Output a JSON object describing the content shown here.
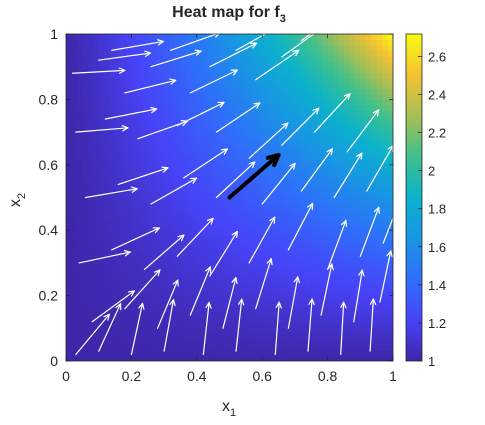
{
  "chart_data": {
    "type": "heatmap",
    "title": "Heat map for f",
    "title_subscript": "3",
    "xlabel": "x",
    "xlabel_subscript": "1",
    "ylabel": "x",
    "ylabel_subscript": "2",
    "xlim": [
      0,
      1
    ],
    "ylim": [
      0,
      1
    ],
    "xticks": [
      0,
      0.2,
      0.4,
      0.6,
      0.8,
      1
    ],
    "xtick_labels": [
      "0",
      "0.2",
      "0.4",
      "0.6",
      "0.8",
      "1"
    ],
    "yticks": [
      0,
      0.2,
      0.4,
      0.6,
      0.8,
      1
    ],
    "ytick_labels": [
      "0",
      "0.2",
      "0.4",
      "0.6",
      "0.8",
      "1"
    ],
    "colorbar": {
      "colormap": "parula",
      "limits": [
        1,
        2.718
      ],
      "ticks": [
        1,
        1.2,
        1.4,
        1.6,
        1.8,
        2,
        2.2,
        2.4,
        2.6
      ],
      "tick_labels": [
        "1",
        "1.2",
        "1.4",
        "1.6",
        "1.8",
        "2",
        "2.2",
        "2.4",
        "2.6"
      ],
      "colors": [
        "#3e26a8",
        "#4743f8",
        "#2f6ffa",
        "#1896e3",
        "#0bb2cb",
        "#3dc08d",
        "#a8bf54",
        "#f4c231",
        "#f9fb15"
      ]
    },
    "quiver_color": "#ffffff",
    "highlight_arrow": {
      "x": 0.5,
      "y": 0.5,
      "dx": 0.15,
      "dy": 0.13,
      "color": "#000000"
    },
    "quiver": [
      {
        "x": 0.02,
        "y": 0.88
      },
      {
        "x": 0.1,
        "y": 0.92
      },
      {
        "x": 0.14,
        "y": 0.95
      },
      {
        "x": 0.18,
        "y": 0.82
      },
      {
        "x": 0.26,
        "y": 0.9
      },
      {
        "x": 0.32,
        "y": 0.95
      },
      {
        "x": 0.38,
        "y": 0.82
      },
      {
        "x": 0.44,
        "y": 0.9
      },
      {
        "x": 0.52,
        "y": 0.95
      },
      {
        "x": 0.58,
        "y": 0.86
      },
      {
        "x": 0.66,
        "y": 0.93
      },
      {
        "x": 0.72,
        "y": 0.98
      },
      {
        "x": 0.03,
        "y": 0.7
      },
      {
        "x": 0.12,
        "y": 0.74
      },
      {
        "x": 0.22,
        "y": 0.68
      },
      {
        "x": 0.34,
        "y": 0.72
      },
      {
        "x": 0.46,
        "y": 0.7
      },
      {
        "x": 0.56,
        "y": 0.62
      },
      {
        "x": 0.66,
        "y": 0.66
      },
      {
        "x": 0.76,
        "y": 0.7
      },
      {
        "x": 0.86,
        "y": 0.64
      },
      {
        "x": 0.06,
        "y": 0.5
      },
      {
        "x": 0.16,
        "y": 0.54
      },
      {
        "x": 0.26,
        "y": 0.48
      },
      {
        "x": 0.36,
        "y": 0.56
      },
      {
        "x": 0.46,
        "y": 0.5
      },
      {
        "x": 0.6,
        "y": 0.48
      },
      {
        "x": 0.72,
        "y": 0.52
      },
      {
        "x": 0.82,
        "y": 0.5
      },
      {
        "x": 0.92,
        "y": 0.52
      },
      {
        "x": 0.04,
        "y": 0.3
      },
      {
        "x": 0.14,
        "y": 0.34
      },
      {
        "x": 0.24,
        "y": 0.28
      },
      {
        "x": 0.34,
        "y": 0.32
      },
      {
        "x": 0.44,
        "y": 0.26
      },
      {
        "x": 0.56,
        "y": 0.3
      },
      {
        "x": 0.68,
        "y": 0.34
      },
      {
        "x": 0.8,
        "y": 0.28
      },
      {
        "x": 0.9,
        "y": 0.32
      },
      {
        "x": 0.97,
        "y": 0.36
      },
      {
        "x": 0.08,
        "y": 0.12
      },
      {
        "x": 0.18,
        "y": 0.16
      },
      {
        "x": 0.28,
        "y": 0.1
      },
      {
        "x": 0.38,
        "y": 0.14
      },
      {
        "x": 0.48,
        "y": 0.1
      },
      {
        "x": 0.58,
        "y": 0.16
      },
      {
        "x": 0.68,
        "y": 0.1
      },
      {
        "x": 0.78,
        "y": 0.14
      },
      {
        "x": 0.88,
        "y": 0.12
      },
      {
        "x": 0.96,
        "y": 0.18
      },
      {
        "x": 0.03,
        "y": 0.02
      },
      {
        "x": 0.1,
        "y": 0.03
      },
      {
        "x": 0.2,
        "y": 0.02
      },
      {
        "x": 0.3,
        "y": 0.03
      },
      {
        "x": 0.42,
        "y": 0.02
      },
      {
        "x": 0.52,
        "y": 0.03
      },
      {
        "x": 0.64,
        "y": 0.02
      },
      {
        "x": 0.74,
        "y": 0.03
      },
      {
        "x": 0.84,
        "y": 0.02
      },
      {
        "x": 0.93,
        "y": 0.03
      }
    ]
  }
}
